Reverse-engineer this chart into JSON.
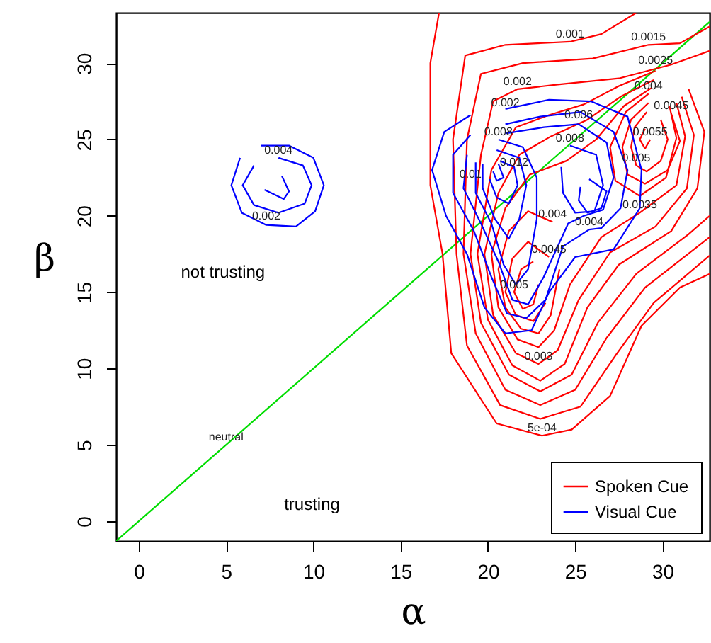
{
  "chart_data": {
    "type": "line",
    "xlabel": "α",
    "ylabel": "β",
    "xlim": [
      -1.3,
      32.7
    ],
    "ylim": [
      -1.3,
      33.3
    ],
    "xticks": [
      0,
      5,
      10,
      15,
      20,
      25,
      30
    ],
    "yticks": [
      0,
      5,
      10,
      15,
      20,
      25,
      30
    ],
    "grid": false,
    "legend": "bottom right",
    "marker": "none",
    "line_style": "solid",
    "series": [
      {
        "color": "#00dd00",
        "x": [
          -1.3,
          32.7
        ],
        "values": [
          -1.3,
          32.7
        ]
      },
      {
        "name": "Spoken Cue",
        "color": "#ff0000",
        "x": [
          17.2,
          16.7,
          16.7,
          17.4,
          17.9,
          20.5,
          23.1,
          24.8,
          27,
          28.8,
          31,
          32.7
        ],
        "values": [
          33.3,
          30,
          22,
          17.5,
          11,
          6.4,
          5.6,
          6,
          8.2,
          12.8,
          15.3,
          16.2
        ]
      },
      {
        "color": "#ff0000",
        "x": [
          28.5,
          26.5,
          24.7,
          21,
          18.7,
          18,
          18.2,
          18.8,
          20.7,
          23,
          25.3,
          27.4,
          29.5,
          32.7
        ],
        "values": [
          33.3,
          31.9,
          31.4,
          31.2,
          30.5,
          25,
          17.5,
          11.5,
          7.6,
          6.7,
          7.5,
          11,
          14.3,
          17.4
        ]
      },
      {
        "color": "#ff0000",
        "x": [
          32.7,
          31,
          29.2,
          26,
          22,
          19.6,
          18.8,
          18.6,
          19.3,
          21,
          23,
          25,
          26.8,
          29,
          32.7
        ],
        "values": [
          32.4,
          31.3,
          31.2,
          30.3,
          30,
          29.3,
          25,
          17.5,
          12.3,
          8.6,
          7.6,
          8.6,
          12,
          15.3,
          18.6
        ]
      },
      {
        "color": "#ff0000",
        "x": [
          32.7,
          30.5,
          27.5,
          24,
          21.7,
          20.3,
          19.6,
          19,
          19.6,
          21.2,
          23,
          24.8,
          26.3,
          28.5,
          31.5,
          32.7
        ],
        "values": [
          30.8,
          29.9,
          29,
          28.6,
          28.3,
          27.5,
          24,
          17.5,
          13,
          9.6,
          8.5,
          9.6,
          13,
          16.2,
          18.8,
          20
        ]
      },
      {
        "color": "#ff0000",
        "x": [
          29.6,
          27.5,
          25.5,
          23.5,
          21.6,
          20.2,
          19.4,
          20,
          21.4,
          23,
          24.4,
          25.7,
          27.5,
          30.5,
          32,
          32.4,
          31.5
        ],
        "values": [
          29.5,
          28.5,
          27.3,
          26.6,
          25.8,
          23,
          17.5,
          13.2,
          10.2,
          9.2,
          10.3,
          14,
          16.8,
          19,
          21.8,
          25.5,
          28.3
        ]
      },
      {
        "color": "#ff0000",
        "x": [
          29.5,
          27.6,
          25.7,
          23.6,
          21.8,
          20.6,
          19.8,
          20.3,
          21.6,
          22.9,
          24,
          25.2,
          27,
          29.6,
          31.4,
          31.8,
          31.1
        ],
        "values": [
          28.9,
          27.8,
          26.3,
          25.2,
          24,
          21.5,
          17.5,
          13.5,
          11,
          10.3,
          11.2,
          14.5,
          17.6,
          19.3,
          21.8,
          25.3,
          27.8
        ]
      },
      {
        "color": "#ff0000",
        "x": [
          29.4,
          27.8,
          26.2,
          24.5,
          22.4,
          21,
          20.2,
          20.6,
          21.7,
          22.9,
          23.8,
          24.7,
          26.5,
          28.7,
          30.8,
          31.3,
          30.8
        ],
        "values": [
          28.4,
          27.2,
          25,
          23.6,
          22.7,
          20.5,
          17.5,
          14,
          11.9,
          11.4,
          12.5,
          15.5,
          18.6,
          20.2,
          22,
          25.2,
          27.4
        ]
      },
      {
        "color": "#ff0000",
        "x": [
          23.7,
          22.3,
          21.2,
          20.6,
          21,
          21.9,
          22.9,
          23.6,
          24.1
        ],
        "values": [
          19.6,
          20.3,
          19,
          16.5,
          14,
          12.6,
          12.3,
          13.5,
          16.5
        ]
      },
      {
        "color": "#ff0000",
        "x": [
          29.2,
          27.9,
          27,
          27.3,
          28.7,
          30.2,
          30.8,
          30.4
        ],
        "values": [
          28,
          26.8,
          24.5,
          22.3,
          21.3,
          22.5,
          25.1,
          27.2
        ]
      },
      {
        "color": "#ff0000",
        "x": [
          23.5,
          22.3,
          21.4,
          21,
          21.6,
          22.6,
          23.3
        ],
        "values": [
          17.3,
          18.3,
          17.2,
          15,
          13.5,
          13.1,
          14.3
        ]
      },
      {
        "color": "#ff0000",
        "x": [
          29.2,
          28.2,
          27.7,
          28,
          29,
          30.3,
          31,
          30.5
        ],
        "values": [
          27.4,
          26.3,
          24.5,
          22.7,
          22.1,
          23,
          24.9,
          26.7
        ]
      },
      {
        "color": "#ff0000",
        "x": [
          22.6,
          21.9,
          21.5,
          22,
          22.6,
          22.9
        ],
        "values": [
          17,
          16.5,
          15,
          13.9,
          14.2,
          15.5
        ]
      },
      {
        "color": "#ff0000",
        "x": [
          29.1,
          28.4,
          28.2,
          28.5,
          29.1,
          29.9,
          30.3,
          29.9
        ],
        "values": [
          26.8,
          25.8,
          24.5,
          23.3,
          22.9,
          23.6,
          25,
          26.3
        ]
      },
      {
        "color": "#ff0000",
        "x": [
          29,
          28.7,
          29,
          29.3
        ],
        "values": [
          25.7,
          25,
          24.4,
          25
        ]
      },
      {
        "name": "Visual Cue",
        "color": "#0000ff",
        "x": [
          21,
          23.5,
          25.9,
          28,
          28.8,
          28.7,
          27.2,
          25,
          23.5,
          22.5,
          21,
          19.8,
          18.8,
          17.6,
          16.8,
          17.5,
          19
        ],
        "values": [
          27,
          27.6,
          27.5,
          26.5,
          23,
          20.5,
          17.8,
          17.3,
          15,
          12.5,
          12.3,
          14,
          17.5,
          20,
          23,
          25.5,
          26.6
        ]
      },
      {
        "color": "#0000ff",
        "x": [
          21,
          23,
          25.3,
          27.2,
          28,
          27.6,
          26.5,
          25.8,
          24.3,
          23.3,
          22.2,
          21.1,
          20.2,
          19.2,
          18,
          18,
          19
        ],
        "values": [
          26,
          26.5,
          26.8,
          25.5,
          23,
          20.5,
          19.2,
          19.1,
          18,
          14.5,
          13.3,
          13.6,
          16,
          19,
          21.5,
          24,
          25.3
        ]
      },
      {
        "color": "#0000ff",
        "x": [
          21,
          23.2,
          25.2,
          26.8,
          27.2,
          26.6,
          25.5,
          24.6,
          23.2,
          22.3,
          21.4,
          20.6,
          19.6,
          18.6,
          18.8
        ],
        "values": [
          25.4,
          25.8,
          26,
          24.8,
          22.5,
          20.4,
          20,
          19.5,
          16,
          14.2,
          14.5,
          17,
          19.5,
          21.8,
          24
        ]
      },
      {
        "color": "#0000ff",
        "x": [
          20.6,
          22,
          22.8,
          22.8,
          22.3,
          21.6,
          20.9,
          20.2,
          19.3,
          19.3
        ],
        "values": [
          25,
          24.5,
          22.5,
          19.8,
          16.5,
          15.5,
          16.8,
          19.5,
          21.5,
          23.5
        ]
      },
      {
        "color": "#0000ff",
        "x": [
          24.7,
          26.2,
          26.6,
          26.1,
          25,
          24.3,
          24.2
        ],
        "values": [
          24.6,
          24,
          22,
          20.3,
          20.2,
          21.5,
          23.2
        ]
      },
      {
        "color": "#0000ff",
        "x": [
          20.5,
          21.8,
          22.2,
          21.8,
          21.2,
          20.4,
          19.7,
          19.7
        ],
        "values": [
          24.3,
          23.8,
          22,
          19.8,
          18.5,
          19.8,
          21.8,
          23.4
        ]
      },
      {
        "color": "#0000ff",
        "x": [
          25.8,
          26.8,
          26.5,
          25.7,
          25.2,
          25.3
        ],
        "values": [
          22.4,
          21.6,
          20.5,
          20.2,
          21,
          21.9
        ]
      },
      {
        "color": "#0000ff",
        "x": [
          20.7,
          21.5,
          21.7,
          21.2,
          20.5,
          20.1
        ],
        "values": [
          23.6,
          23.2,
          22,
          20.8,
          21.2,
          22.4
        ]
      },
      {
        "color": "#0000ff",
        "x": [
          20.6,
          20.9,
          20.5,
          20.3
        ],
        "values": [
          23.4,
          22.5,
          22.3,
          22.9
        ]
      },
      {
        "color": "#0000ff",
        "x": [
          7,
          8.6,
          10,
          10.6,
          10.1,
          9,
          7.3,
          5.9,
          5.3,
          5.8
        ],
        "values": [
          24.6,
          24.6,
          23.8,
          22,
          20.3,
          19.3,
          19.4,
          20.2,
          22,
          23.8
        ]
      },
      {
        "color": "#0000ff",
        "x": [
          8,
          9.4,
          9.9,
          9.5,
          8,
          6.6,
          5.95,
          6.6
        ],
        "values": [
          23.8,
          23.3,
          22,
          20.8,
          20.2,
          20.7,
          22,
          23.3
        ]
      },
      {
        "color": "#0000ff",
        "x": [
          8.2,
          8.6,
          8.3,
          7.2
        ],
        "values": [
          22.6,
          21.6,
          21.1,
          21.7
        ]
      }
    ],
    "annotations": [
      "not trusting",
      "trusting",
      {
        "text": "neutral",
        "x": 5,
        "y": 5
      },
      {
        "text": "0.001",
        "x": 24.7,
        "y": 31.4
      },
      {
        "text": "0.0015",
        "x": 29.2,
        "y": 31.2
      },
      {
        "text": "0.0025",
        "x": 29.6,
        "y": 29.7
      },
      {
        "text": "0.002",
        "x": 21.7,
        "y": 28.3
      },
      {
        "text": "0.004",
        "x": 29.2,
        "y": 28
      },
      {
        "text": "0.0055",
        "x": 29.3,
        "y": 25
      },
      {
        "text": "0.0045",
        "x": 30.5,
        "y": 26.7
      },
      {
        "text": "0.005",
        "x": 28.5,
        "y": 23.3
      },
      {
        "text": "0.0035",
        "x": 28.7,
        "y": 20.2
      },
      {
        "text": "0.004",
        "x": 23.7,
        "y": 19.6
      },
      {
        "text": "0.0045",
        "x": 23.5,
        "y": 17.3
      },
      {
        "text": "0.005",
        "x": 21.5,
        "y": 15
      },
      {
        "text": "0.003",
        "x": 22.9,
        "y": 10.3
      },
      {
        "text": "5e-04",
        "x": 23.1,
        "y": 5.6
      },
      {
        "text": "0.002",
        "x": 21,
        "y": 26.9
      },
      {
        "text": "0.006",
        "x": 25.2,
        "y": 26.1
      },
      {
        "text": "0.008",
        "x": 20.6,
        "y": 25
      },
      {
        "text": "0.008",
        "x": 24.7,
        "y": 24.6
      },
      {
        "text": "0.012",
        "x": 21.5,
        "y": 23
      },
      {
        "text": "0.01",
        "x": 19,
        "y": 22.2
      },
      {
        "text": "0.004",
        "x": 25.8,
        "y": 19.1
      },
      {
        "text": "0.004",
        "x": 8,
        "y": 23.8
      },
      {
        "text": "0.002",
        "x": 7.3,
        "y": 19.5
      }
    ]
  }
}
